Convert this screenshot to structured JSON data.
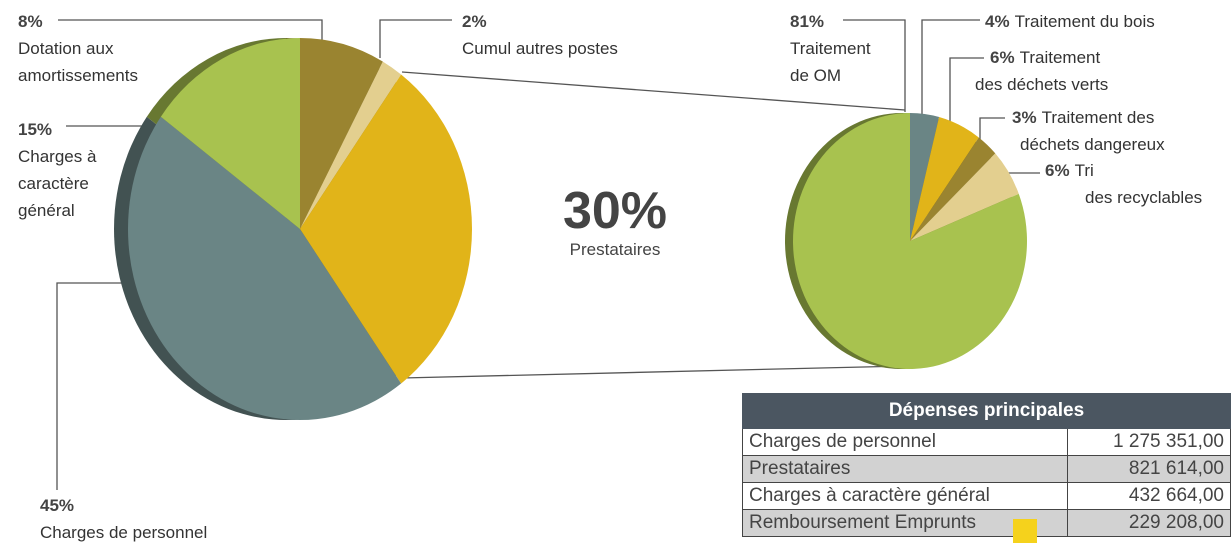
{
  "chart_data": [
    {
      "type": "pie",
      "categories": [
        "Dotation aux\namortissements",
        "Cumul autres postes",
        "Prestataires",
        "Charges de personnel",
        "Charges à\ncaractère\ngénéral"
      ],
      "values": [
        8,
        2,
        30,
        45,
        15
      ],
      "value_labels": [
        "8%",
        "2%",
        "30%",
        "45%",
        "15%"
      ],
      "colors": [
        "#9a8430",
        "#e3cf8f",
        "#e1b419",
        "#6a8585",
        "#a8c24f"
      ]
    },
    {
      "type": "pie",
      "categories": [
        "Traitement du bois",
        "Traitement\ndes déchets verts",
        "Traitement des\ndéchets dangereux",
        "Tri\ndes recyclables",
        "Traitement\nde OM"
      ],
      "values": [
        4,
        6,
        3,
        6,
        81
      ],
      "value_labels": [
        "4%",
        "6%",
        "3%",
        "6%",
        "81%"
      ],
      "colors": [
        "#6a8585",
        "#e1b419",
        "#9a8430",
        "#e3cf8f",
        "#a8c24f"
      ]
    }
  ],
  "table": {
    "title": "Dépenses principales",
    "rows": [
      [
        "Charges de personnel",
        "1 275 351,00"
      ],
      [
        "Prestataires",
        "821 614,00"
      ],
      [
        "Charges à caractère général",
        "432 664,00"
      ],
      [
        "Remboursement Emprunts",
        "229 208,00"
      ]
    ]
  }
}
